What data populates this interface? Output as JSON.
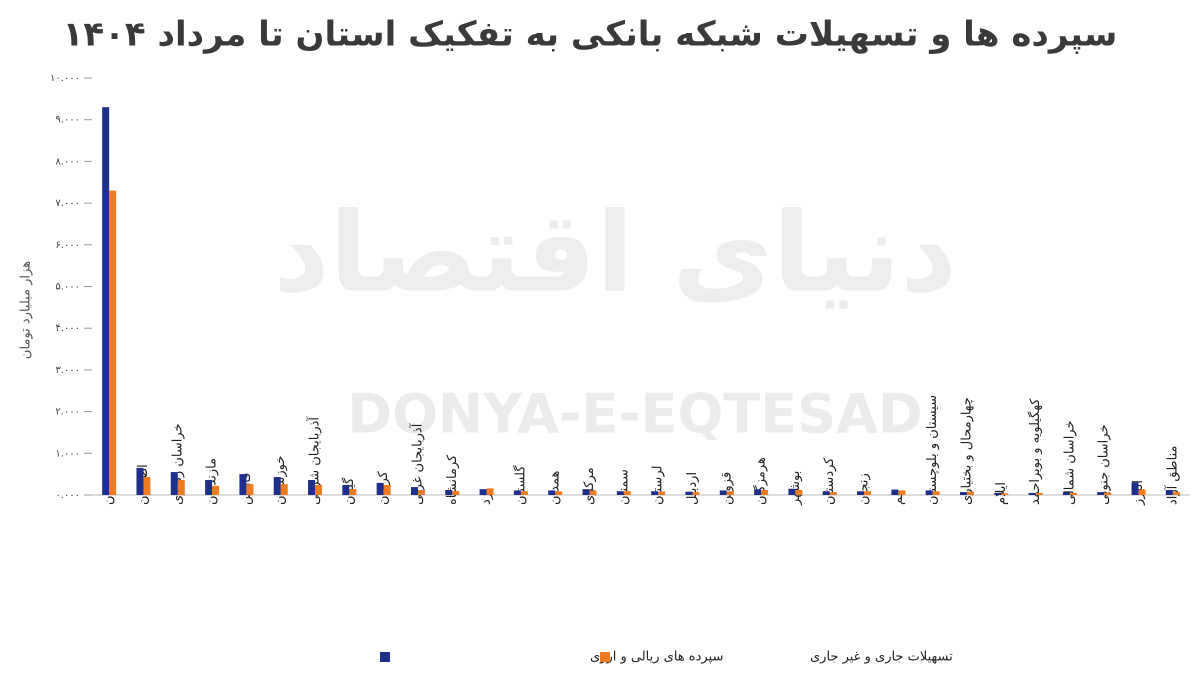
{
  "chart_data": {
    "type": "bar",
    "title": "سپرده ها و تسهیلات شبکه بانکی به تفکیک استان تا مرداد ۱۴۰۴",
    "y_label": "هزار میلیارد تومان",
    "watermark": "DONYA-E-EQTESAD",
    "watermark_fa": "دنیای اقتصاد",
    "categories": [
      "تهران",
      "اصفهان",
      "خراسان رضوی",
      "مازندران",
      "فارس",
      "خوزستان",
      "آذربایجان شرقی",
      "گیلان",
      "کرمان",
      "آذربایجان غربی",
      "کرمانشاه",
      "یزد",
      "گلستان",
      "همدان",
      "مرکزی",
      "سمنان",
      "لرستان",
      "اردبیل",
      "قزوین",
      "هرمزگان",
      "بوشهر",
      "کردستان",
      "زنجان",
      "قم",
      "سیستان و بلوچستان",
      "چهارمحال و بختیاری",
      "ایلام",
      "کهگیلویه و بویراحمد",
      "خراسان شمالی",
      "خراسان جنوبی",
      "البرز",
      "مناطق آزاد"
    ],
    "series": [
      {
        "name": "سپرده های ریالی و ارزی",
        "color": "#1f2f8c",
        "values": [
          9300,
          650,
          550,
          360,
          500,
          430,
          360,
          240,
          290,
          190,
          120,
          140,
          110,
          110,
          140,
          90,
          90,
          80,
          110,
          130,
          150,
          90,
          90,
          130,
          110,
          70,
          50,
          50,
          60,
          70,
          300,
          120
        ]
      },
      {
        "name": "تسهیلات جاری و غیر جاری",
        "color": "#f07c22",
        "values": [
          7300,
          430,
          360,
          220,
          260,
          260,
          240,
          140,
          240,
          120,
          100,
          160,
          90,
          90,
          110,
          90,
          80,
          70,
          90,
          120,
          120,
          70,
          90,
          110,
          90,
          80,
          40,
          50,
          50,
          60,
          130,
          70
        ]
      }
    ],
    "ylim": [
      0,
      10000
    ],
    "yticks": [
      {
        "value": 0,
        "label": "۰.۰۰۰"
      },
      {
        "value": 1000,
        "label": "۱.۰۰۰"
      },
      {
        "value": 2000,
        "label": "۲.۰۰۰"
      },
      {
        "value": 3000,
        "label": "۳.۰۰۰"
      },
      {
        "value": 4000,
        "label": "۴.۰۰۰"
      },
      {
        "value": 5000,
        "label": "۵.۰۰۰"
      },
      {
        "value": 6000,
        "label": "۶.۰۰۰"
      },
      {
        "value": 7000,
        "label": "۷.۰۰۰"
      },
      {
        "value": 8000,
        "label": "۸.۰۰۰"
      },
      {
        "value": 9000,
        "label": "۹.۰۰۰"
      },
      {
        "value": 10000,
        "label": "۱۰.۰۰۰"
      }
    ],
    "grid": false,
    "legend": "bottom"
  }
}
